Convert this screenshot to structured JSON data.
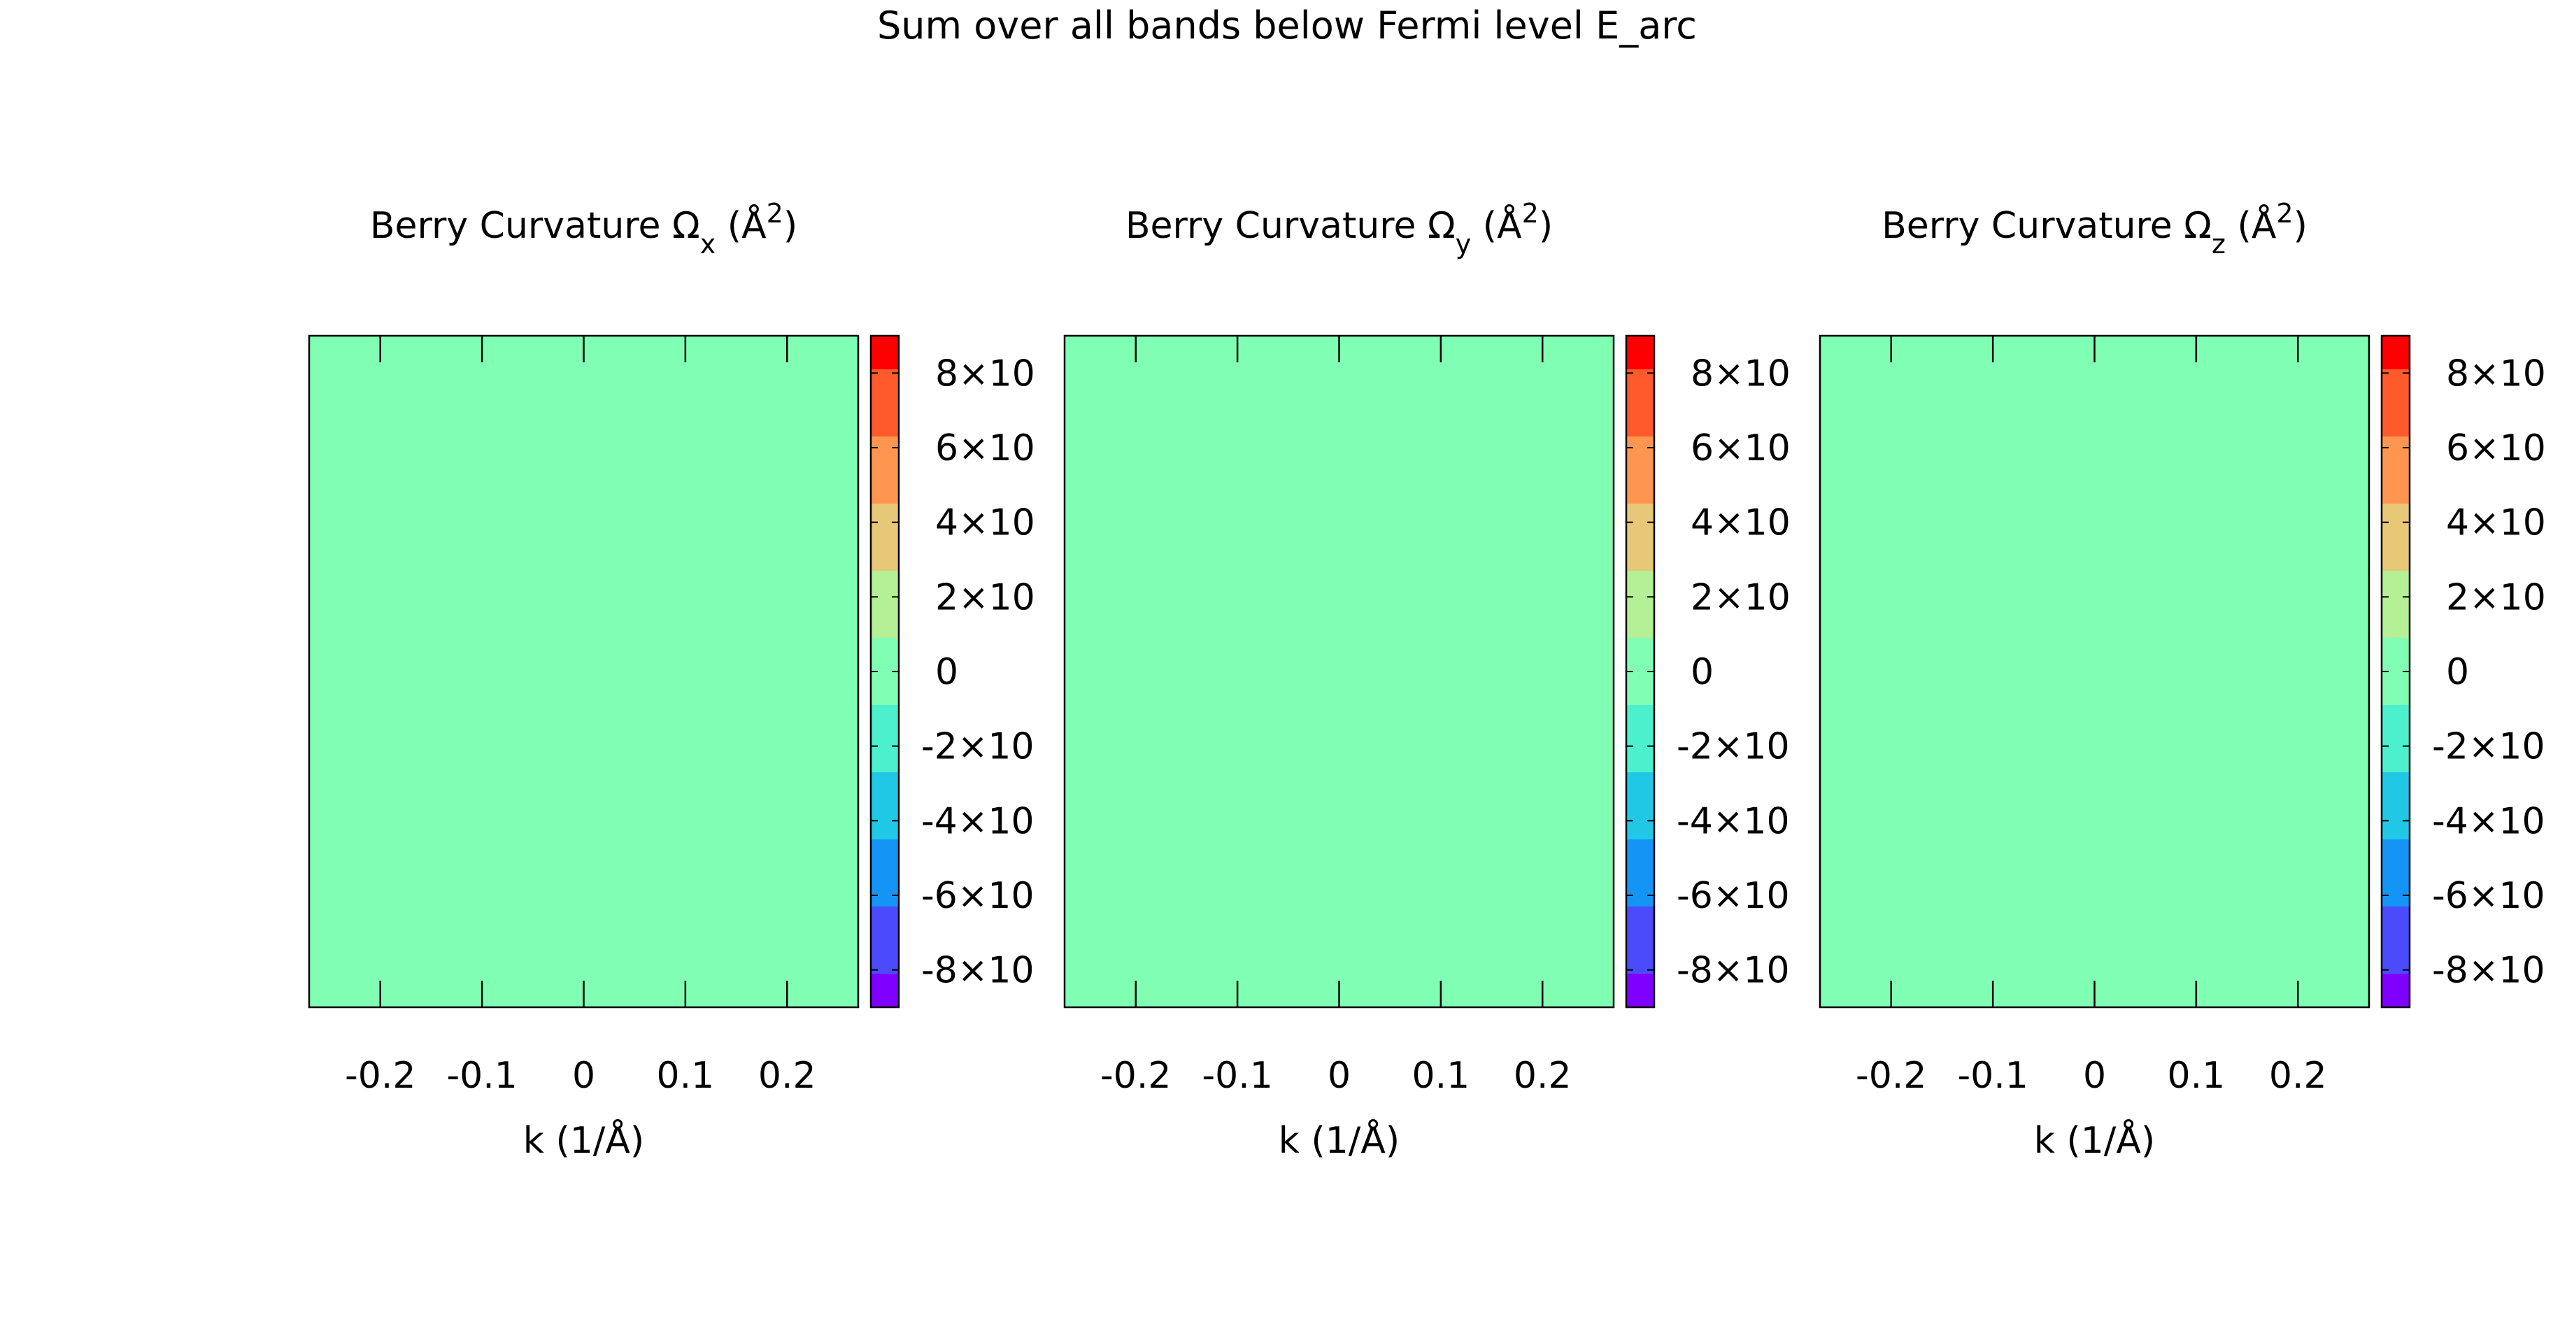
{
  "figure_title": "Sum over all bands below Fermi level E_arc",
  "chart_data": [
    {
      "type": "heatmap",
      "title": "Berry Curvature Ωx (Å²)",
      "title_parts": {
        "base": "Berry Curvature Ω",
        "sub": "x",
        "pre": " (Å",
        "sup": "2",
        "post": ")"
      },
      "xlabel": "k (1/Å)",
      "xticks": [
        -0.2,
        -0.1,
        0,
        0.1,
        0.2
      ],
      "xtick_labels": [
        "-0.2",
        "-0.1",
        "0",
        "0.1",
        "0.2"
      ],
      "xlim": [
        -0.27,
        0.27
      ],
      "field_value": 0,
      "field_color": "#80ffb4",
      "colorbar": {
        "tick_labels": [
          "8×10",
          "6×10",
          "4×10",
          "2×10",
          "0",
          "-2×10",
          "-4×10",
          "-6×10",
          "-8×10"
        ],
        "range": [
          -9,
          9
        ],
        "ticks": [
          8,
          6,
          4,
          2,
          0,
          -2,
          -4,
          -6,
          -8
        ]
      }
    },
    {
      "type": "heatmap",
      "title": "Berry Curvature Ωy (Å²)",
      "title_parts": {
        "base": "Berry Curvature Ω",
        "sub": "y",
        "pre": " (Å",
        "sup": "2",
        "post": ")"
      },
      "xlabel": "k (1/Å)",
      "xticks": [
        -0.2,
        -0.1,
        0,
        0.1,
        0.2
      ],
      "xtick_labels": [
        "-0.2",
        "-0.1",
        "0",
        "0.1",
        "0.2"
      ],
      "xlim": [
        -0.27,
        0.27
      ],
      "field_value": 0,
      "field_color": "#80ffb4",
      "colorbar": {
        "tick_labels": [
          "8×10",
          "6×10",
          "4×10",
          "2×10",
          "0",
          "-2×10",
          "-4×10",
          "-6×10",
          "-8×10"
        ],
        "range": [
          -9,
          9
        ],
        "ticks": [
          8,
          6,
          4,
          2,
          0,
          -2,
          -4,
          -6,
          -8
        ]
      }
    },
    {
      "type": "heatmap",
      "title": "Berry Curvature Ωz (Å²)",
      "title_parts": {
        "base": "Berry Curvature Ω",
        "sub": "z",
        "pre": " (Å",
        "sup": "2",
        "post": ")"
      },
      "xlabel": "k (1/Å)",
      "xticks": [
        -0.2,
        -0.1,
        0,
        0.1,
        0.2
      ],
      "xtick_labels": [
        "-0.2",
        "-0.1",
        "0",
        "0.1",
        "0.2"
      ],
      "xlim": [
        -0.27,
        0.27
      ],
      "field_value": 0,
      "field_color": "#80ffb4",
      "colorbar": {
        "tick_labels": [
          "8×10",
          "6×10",
          "4×10",
          "2×10",
          "0",
          "-2×10",
          "-4×10",
          "-6×10",
          "-8×10"
        ],
        "range": [
          -9,
          9
        ],
        "ticks": [
          8,
          6,
          4,
          2,
          0,
          -2,
          -4,
          -6,
          -8
        ]
      }
    }
  ],
  "colormap": [
    "#7f00ff",
    "#4b4bfc",
    "#1495f5",
    "#20c8e6",
    "#4cf0cc",
    "#80ffb4",
    "#b4f096",
    "#e6c878",
    "#ff9650",
    "#ff5a2c",
    "#ff0000"
  ]
}
